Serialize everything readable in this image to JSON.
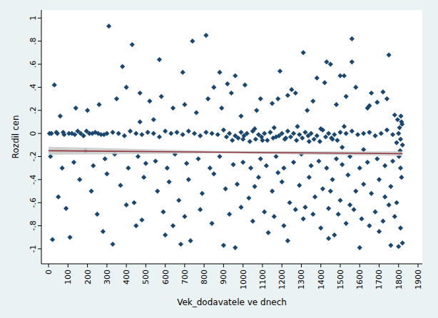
{
  "chart_data": {
    "type": "scatter",
    "x_label": "Vek_dodavatele ve dnech",
    "y_label": "Rozdil cen",
    "xlim": [
      -37,
      1922
    ],
    "ylim": [
      -1.13,
      1.07
    ],
    "xticks": [
      0,
      100,
      200,
      300,
      400,
      500,
      600,
      700,
      800,
      900,
      1000,
      1100,
      1200,
      1300,
      1400,
      1500,
      1600,
      1700,
      1800,
      1900
    ],
    "yticks": [
      1,
      {
        "value": 0.8,
        "label": ".8"
      },
      {
        "value": 0.6,
        "label": ".6"
      },
      {
        "value": 0.4,
        "label": ".4"
      },
      {
        "value": 0.2,
        "label": ".2"
      },
      0,
      {
        "value": -0.2,
        "label": "-.2"
      },
      {
        "value": -0.4,
        "label": "-.4"
      },
      {
        "value": -0.6,
        "label": "-.6"
      },
      {
        "value": -0.8,
        "label": "-.8"
      },
      -1
    ],
    "grid": false,
    "series": [
      {
        "type": "scatter",
        "marker": "diamond",
        "color": "#1a476f",
        "x": [
          310,
          430,
          740,
          810,
          1560,
          1310,
          1750,
          380,
          570,
          30,
          20,
          110,
          330,
          900,
          960,
          1600,
          1820,
          1800,
          1760,
          1230,
          280,
          600,
          680,
          730,
          1470,
          1440,
          1130,
          1700,
          450,
          1560,
          1430,
          1450,
          1500,
          1520,
          880,
          920,
          1190,
          690,
          960,
          1380,
          5,
          40,
          80,
          120,
          150,
          180,
          210,
          240,
          270,
          300,
          330,
          360,
          390,
          420,
          450,
          480,
          510,
          540,
          570,
          600,
          630,
          660,
          690,
          720,
          750,
          780,
          810,
          840,
          870,
          900,
          930,
          960,
          990,
          1020,
          1050,
          1080,
          1110,
          1140,
          1170,
          1200,
          1230,
          1260,
          1290,
          1320,
          1350,
          1380,
          1410,
          1440,
          1470,
          1500,
          1530,
          1560,
          1590,
          1620,
          1650,
          1680,
          1710,
          1740,
          1770,
          1800,
          1805,
          1810,
          1815,
          1820,
          1812,
          1808,
          1818,
          1802,
          1795,
          1790,
          1000,
          1060,
          1100,
          1160,
          1220,
          1280,
          1340,
          1400,
          1460,
          1520,
          60,
          140,
          200,
          260,
          350,
          400,
          470,
          520,
          580,
          640,
          700,
          760,
          820,
          850,
          890,
          940,
          1010,
          1070,
          1090,
          1150,
          1180,
          1250,
          1270,
          1330,
          1360,
          1420,
          1480,
          1530,
          1580,
          1640,
          1660,
          1690,
          1720,
          1740,
          1780,
          1650,
          1230,
          990,
          540,
          470,
          10,
          70,
          130,
          190,
          230,
          290,
          340,
          410,
          460,
          500,
          550,
          610,
          650,
          710,
          770,
          830,
          880,
          950,
          1000,
          1040,
          1090,
          1120,
          1170,
          1210,
          1260,
          1300,
          1350,
          1390,
          1430,
          1480,
          1510,
          1550,
          1600,
          1640,
          1690,
          1730,
          1770,
          1810,
          1510,
          1620,
          50,
          160,
          220,
          300,
          370,
          440,
          490,
          560,
          620,
          670,
          720,
          790,
          850,
          910,
          970,
          1030,
          1080,
          1150,
          1200,
          1240,
          1290,
          1340,
          1370,
          1410,
          1460,
          1500,
          1540,
          1580,
          1620,
          1660,
          1700,
          1730,
          1760,
          1790,
          1815,
          1550,
          1450,
          1320,
          1180,
          1060,
          90,
          250,
          400,
          480,
          590,
          640,
          700,
          780,
          840,
          930,
          990,
          1050,
          1110,
          1160,
          1210,
          1270,
          1310,
          1360,
          1400,
          1440,
          1490,
          1530,
          1570,
          1610,
          1650,
          1680,
          1720,
          1750,
          1780,
          1810,
          915,
          945,
          975,
          1005,
          1035,
          1065,
          1095,
          1125,
          1155,
          1185,
          1215,
          1245,
          1275,
          1305,
          1335,
          1365,
          1395,
          1425,
          1455,
          1485,
          15,
          45,
          75,
          105,
          135,
          165,
          195,
          225,
          255,
          285
        ],
        "values": [
          0.93,
          0.77,
          0.8,
          0.85,
          0.82,
          0.7,
          0.68,
          0.58,
          0.64,
          0.42,
          -0.92,
          -0.9,
          -0.96,
          -0.97,
          -0.99,
          -0.99,
          -0.95,
          -0.98,
          -0.97,
          -0.93,
          -0.85,
          -0.88,
          -0.96,
          -0.93,
          -0.88,
          -0.91,
          -0.86,
          -0.85,
          -0.8,
          0.62,
          0.62,
          0.6,
          0.5,
          0.5,
          0.53,
          0.43,
          0.54,
          0.53,
          0.5,
          0.48,
          0,
          0.01,
          -0.01,
          0,
          0.02,
          -0.02,
          0,
          0.01,
          -0.01,
          0,
          0.01,
          0,
          -0.02,
          0.02,
          0,
          -0.01,
          0.01,
          0,
          -0.03,
          0.02,
          0,
          0.01,
          -0.01,
          0.02,
          0,
          -0.02,
          0.01,
          0,
          -0.01,
          0.03,
          0,
          -0.02,
          0.01,
          0,
          0.02,
          -0.01,
          0,
          0.01,
          -0.03,
          0,
          0.02,
          0,
          -0.01,
          0.01,
          0,
          -0.02,
          0.03,
          0,
          -0.01,
          0.01,
          0,
          0.02,
          -0.01,
          0,
          0.01,
          -0.02,
          0,
          0.03,
          -0.01,
          0,
          0.05,
          -0.05,
          0.1,
          -0.1,
          0.15,
          -0.15,
          0.08,
          -0.2,
          0.12,
          -0.08,
          -0.05,
          0.04,
          -0.06,
          0.05,
          -0.04,
          0.06,
          -0.07,
          0.04,
          -0.05,
          0.06,
          0.15,
          0.22,
          0.2,
          0.25,
          0.3,
          0.4,
          0.35,
          0.28,
          0.32,
          0.22,
          0.25,
          0.18,
          0.3,
          0.4,
          0.22,
          0.35,
          0.42,
          0.2,
          0.3,
          0.26,
          0.3,
          0.38,
          0.35,
          0.2,
          0.28,
          0.44,
          0.25,
          0.32,
          0.4,
          0.22,
          0.35,
          0.27,
          0.36,
          0.3,
          0.16,
          0.24,
          0.33,
          0.15,
          0.12,
          0.1,
          -0.2,
          -0.3,
          -0.25,
          -0.15,
          -0.28,
          -0.22,
          -0.18,
          -0.3,
          -0.2,
          -0.26,
          -0.24,
          -0.3,
          -0.18,
          -0.26,
          -0.22,
          -0.3,
          -0.2,
          -0.27,
          -0.25,
          -0.3,
          -0.22,
          -0.28,
          -0.2,
          -0.3,
          -0.25,
          -0.18,
          -0.28,
          -0.24,
          -0.3,
          -0.22,
          -0.27,
          -0.2,
          -0.3,
          -0.25,
          -0.22,
          -0.28,
          -0.24,
          -0.3,
          -0.12,
          -0.14,
          -0.55,
          -0.4,
          -0.5,
          -0.35,
          -0.45,
          -0.6,
          -0.38,
          -0.5,
          -0.42,
          -0.58,
          -0.4,
          -0.52,
          -0.35,
          -0.48,
          -0.44,
          -0.56,
          -0.38,
          -0.5,
          -0.42,
          -0.6,
          -0.45,
          -0.38,
          -0.55,
          -0.48,
          -0.4,
          -0.58,
          -0.36,
          -0.5,
          -0.44,
          -0.52,
          -0.4,
          -0.55,
          -0.46,
          -0.6,
          -0.38,
          -0.62,
          -0.5,
          -0.64,
          -0.34,
          -0.46,
          -0.65,
          -0.7,
          -0.62,
          -0.75,
          -0.68,
          -0.8,
          -0.72,
          -0.66,
          -0.78,
          -0.7,
          -0.64,
          -0.76,
          -0.68,
          -0.72,
          -0.8,
          -0.66,
          -0.74,
          -0.7,
          -0.82,
          -0.65,
          -0.7,
          -0.78,
          -0.66,
          -0.74,
          -0.8,
          -0.68,
          -0.76,
          -0.62,
          -0.72,
          -0.82,
          -0.03,
          -0.06,
          -0.04,
          -0.02,
          -0.07,
          -0.05,
          -0.03,
          -0.06,
          -0.04,
          -0.02,
          -0.05,
          -0.03,
          -0.06,
          -0.04,
          -0.02,
          -0.05,
          -0.07,
          -0.03,
          -0.04,
          -0.06,
          0,
          0,
          0.01,
          0,
          -0.01,
          0,
          0.02,
          0,
          0,
          -0.01
        ]
      },
      {
        "type": "line",
        "line_style": "solid",
        "color": "#90353b",
        "x": [
          0,
          900,
          1820
        ],
        "values": [
          -0.15,
          -0.163,
          -0.175
        ],
        "ci_lower": [
          -0.185,
          -0.172,
          -0.195
        ],
        "ci_upper": [
          -0.115,
          -0.154,
          -0.155
        ]
      }
    ]
  }
}
